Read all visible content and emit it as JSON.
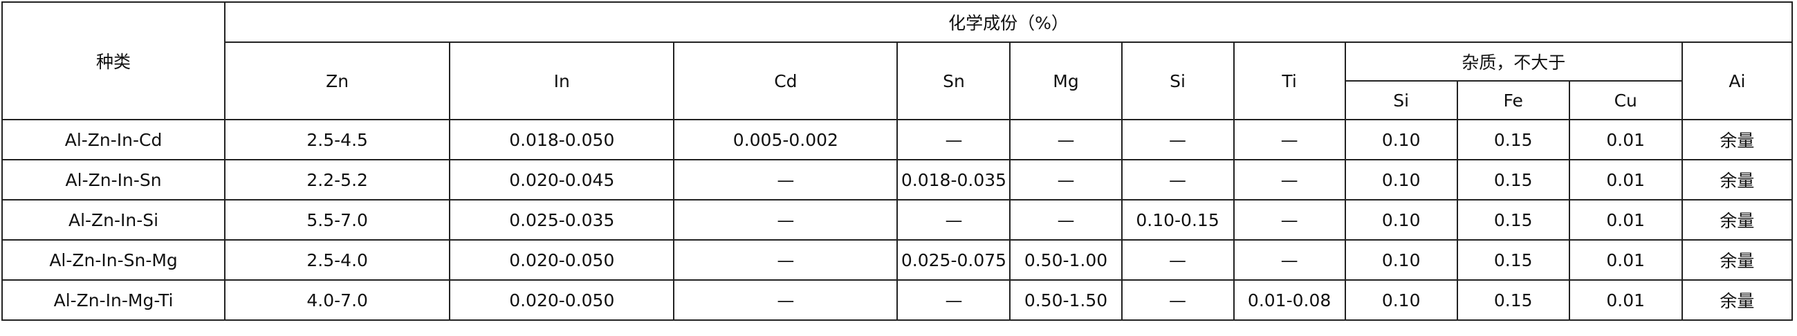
{
  "header": {
    "kind": "种类",
    "composition": "化学成份（%）",
    "columns": [
      "Zn",
      "In",
      "Cd",
      "Sn",
      "Mg",
      "Si",
      "Ti"
    ],
    "impurity": "杂质，不大于",
    "impurity_columns": [
      "Si",
      "Fe",
      "Cu"
    ],
    "balance": "Ai"
  },
  "table": {
    "rows": [
      [
        "Al-Zn-In-Cd",
        "2.5-4.5",
        "0.018-0.050",
        "0.005-0.002",
        "—",
        "—",
        "—",
        "—",
        "0.10",
        "0.15",
        "0.01",
        "余量"
      ],
      [
        "Al-Zn-In-Sn",
        "2.2-5.2",
        "0.020-0.045",
        "—",
        "0.018-0.035",
        "—",
        "—",
        "—",
        "0.10",
        "0.15",
        "0.01",
        "余量"
      ],
      [
        "Al-Zn-In-Si",
        "5.5-7.0",
        "0.025-0.035",
        "—",
        "—",
        "—",
        "0.10-0.15",
        "—",
        "0.10",
        "0.15",
        "0.01",
        "余量"
      ],
      [
        "Al-Zn-In-Sn-Mg",
        "2.5-4.0",
        "0.020-0.050",
        "—",
        "0.025-0.075",
        "0.50-1.00",
        "—",
        "—",
        "0.10",
        "0.15",
        "0.01",
        "余量"
      ],
      [
        "Al-Zn-In-Mg-Ti",
        "4.0-7.0",
        "0.020-0.050",
        "—",
        "—",
        "0.50-1.50",
        "—",
        "0.01-0.08",
        "0.10",
        "0.15",
        "0.01",
        "余量"
      ]
    ]
  }
}
